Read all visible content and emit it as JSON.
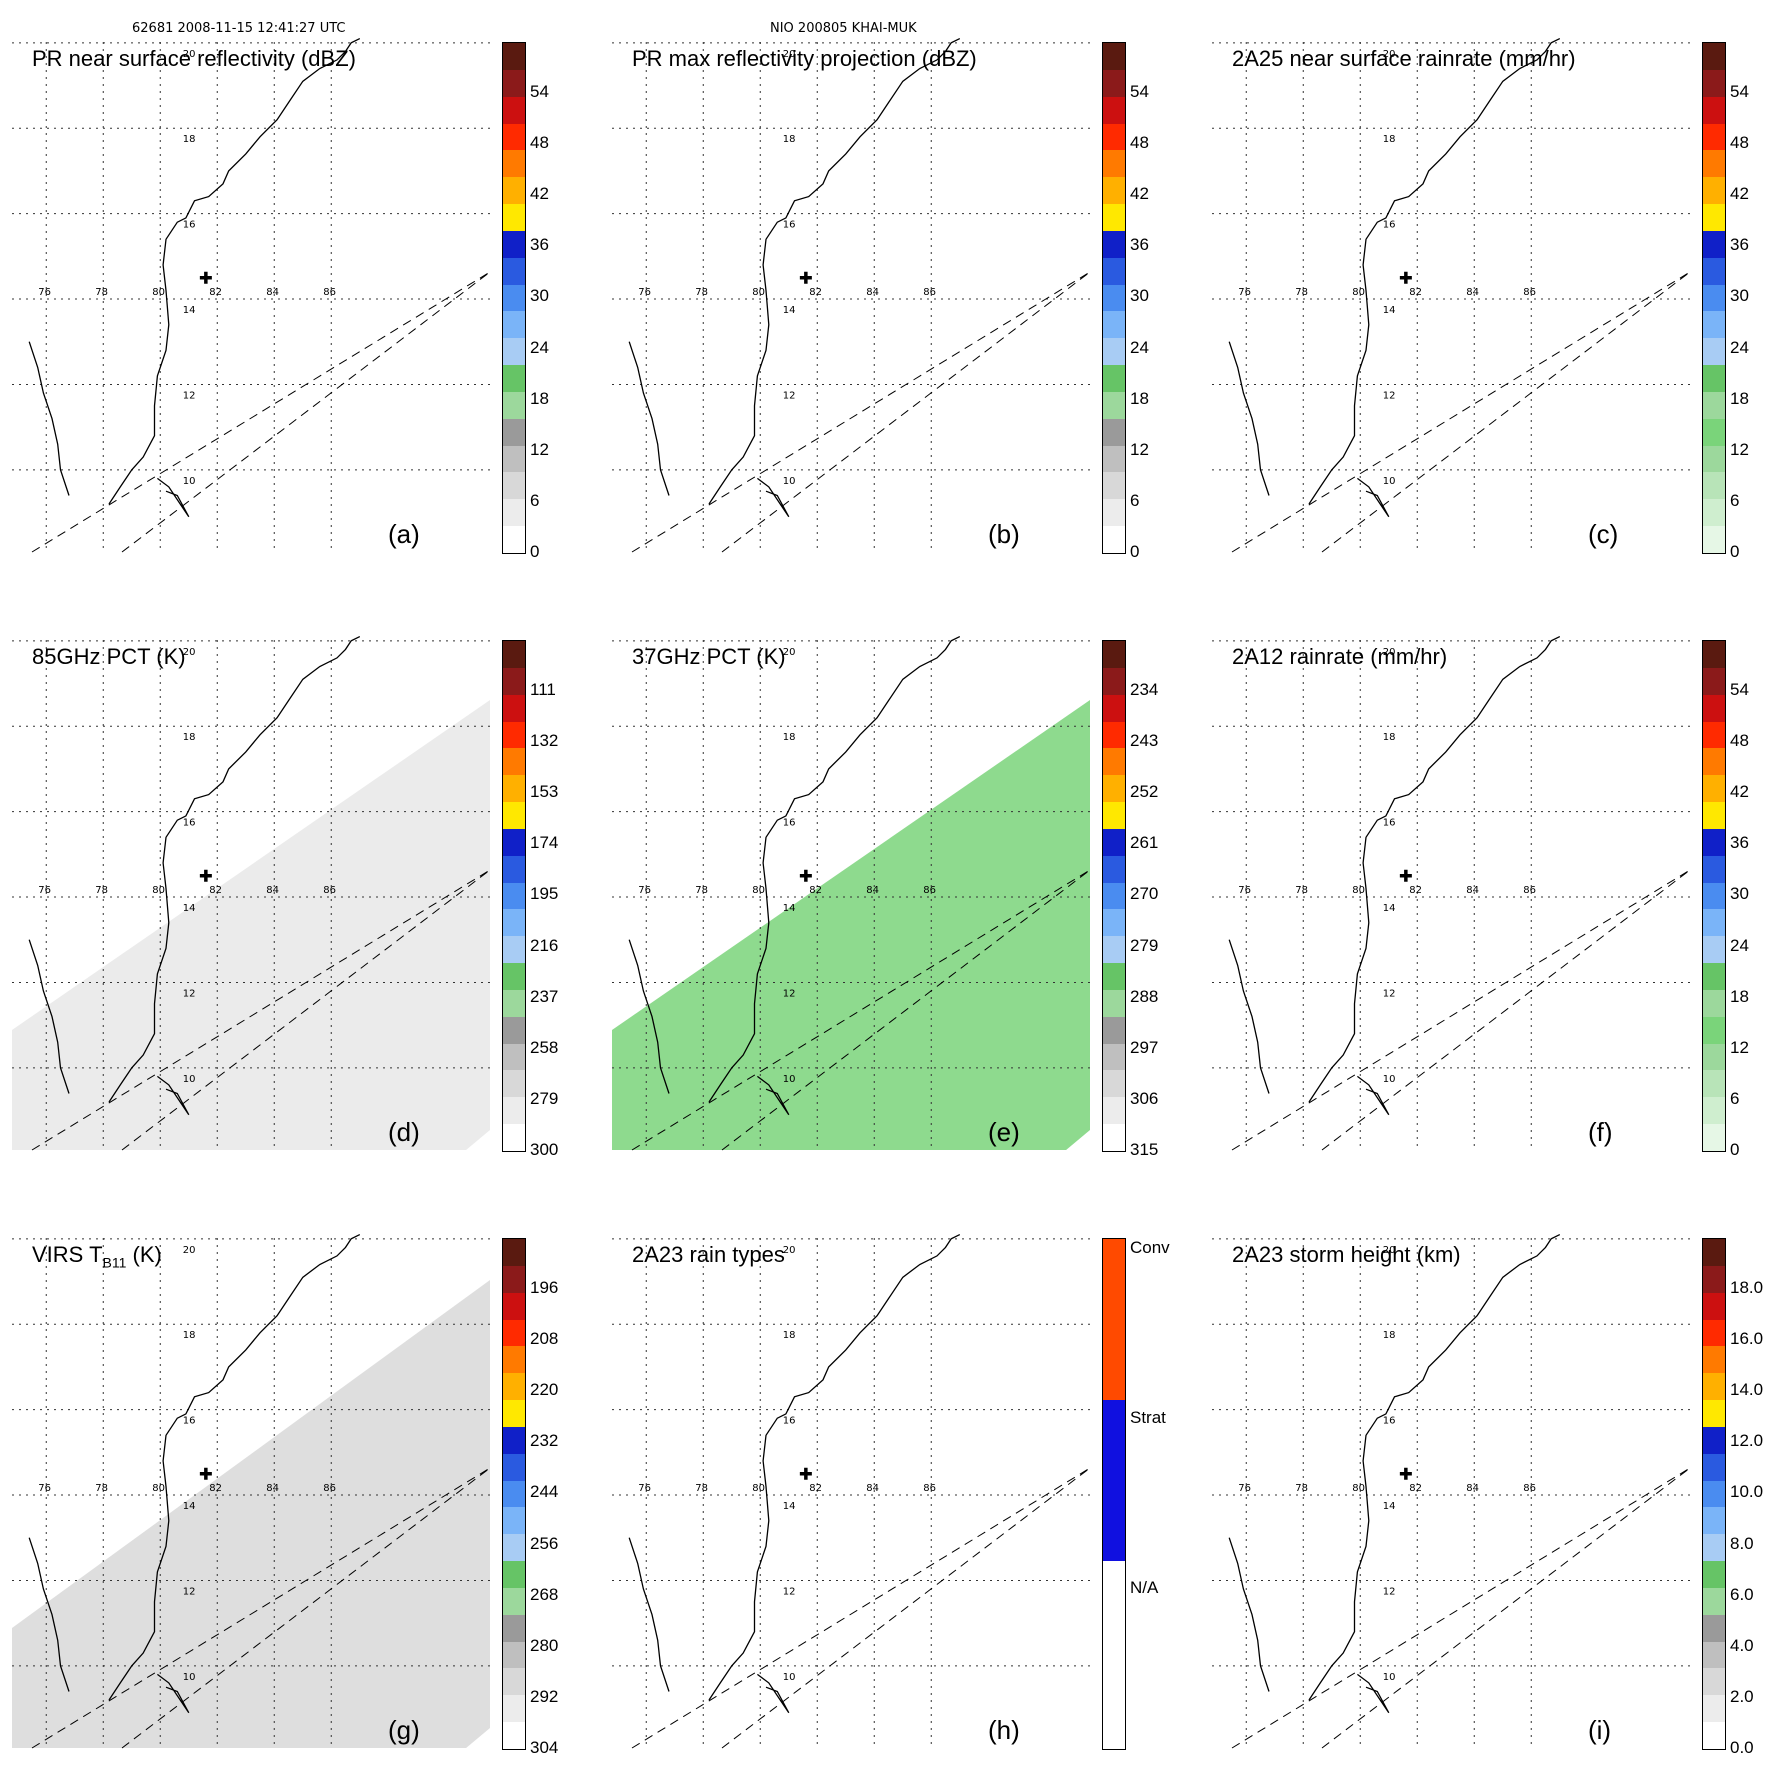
{
  "header": {
    "left": "62681 2008-11-15 12:41:27 UTC",
    "center": "NIO 200805 KHAI-MUK"
  },
  "map_labels": {
    "lon": [
      "76",
      "78",
      "80",
      "82",
      "84",
      "86"
    ],
    "lat": [
      "20",
      "18",
      "16",
      "14",
      "12",
      "10"
    ]
  },
  "colors": {
    "coast": "#000000",
    "grid": "#333333",
    "swath": "#000000",
    "center_mark": "#000000"
  },
  "icons": {
    "storm_center": "plus-marker-icon"
  },
  "panels": [
    {
      "id": "a",
      "title": "PR near surface reflectivity (dBZ)",
      "label": "(a)",
      "ticks": [
        "54",
        "48",
        "42",
        "36",
        "30",
        "24",
        "18",
        "12",
        "6",
        "0"
      ],
      "colorbar": [
        "#5a1a10",
        "#8b1a1a",
        "#cc1010",
        "#ff2a00",
        "#ff7a00",
        "#ffb000",
        "#ffe800",
        "#1020c8",
        "#2a5ae0",
        "#4a8cf0",
        "#7ab4f8",
        "#a8ccf4",
        "#66c466",
        "#9cd89c",
        "#9a9a9a",
        "#bfbfbf",
        "#d8d8d8",
        "#ececec",
        "#ffffff"
      ]
    },
    {
      "id": "b",
      "title": "PR max reflectivity projection (dBZ)",
      "label": "(b)",
      "ticks": [
        "54",
        "48",
        "42",
        "36",
        "30",
        "24",
        "18",
        "12",
        "6",
        "0"
      ],
      "colorbar": [
        "#5a1a10",
        "#8b1a1a",
        "#cc1010",
        "#ff2a00",
        "#ff7a00",
        "#ffb000",
        "#ffe800",
        "#1020c8",
        "#2a5ae0",
        "#4a8cf0",
        "#7ab4f8",
        "#a8ccf4",
        "#66c466",
        "#9cd89c",
        "#9a9a9a",
        "#bfbfbf",
        "#d8d8d8",
        "#ececec",
        "#ffffff"
      ]
    },
    {
      "id": "c",
      "title": "2A25 near surface rainrate (mm/hr)",
      "label": "(c)",
      "ticks": [
        "54",
        "48",
        "42",
        "36",
        "30",
        "24",
        "18",
        "12",
        "6",
        "0"
      ],
      "colorbar": [
        "#5a1a10",
        "#8b1a1a",
        "#cc1010",
        "#ff2a00",
        "#ff7a00",
        "#ffb000",
        "#ffe800",
        "#1020c8",
        "#2a5ae0",
        "#4a8cf0",
        "#7ab4f8",
        "#a8ccf4",
        "#66c466",
        "#9cd89c",
        "#7ad47a",
        "#9cd89c",
        "#b8e4b8",
        "#cfeecf",
        "#e6f7e6"
      ]
    },
    {
      "id": "d",
      "title": "85GHz PCT (K)",
      "label": "(d)",
      "ticks": [
        "111",
        "132",
        "153",
        "174",
        "195",
        "216",
        "237",
        "258",
        "279",
        "300"
      ],
      "colorbar": [
        "#5a1a10",
        "#8b1a1a",
        "#cc1010",
        "#ff2a00",
        "#ff7a00",
        "#ffb000",
        "#ffe800",
        "#1020c8",
        "#2a5ae0",
        "#4a8cf0",
        "#7ab4f8",
        "#a8ccf4",
        "#66c466",
        "#9cd89c",
        "#9a9a9a",
        "#bfbfbf",
        "#d8d8d8",
        "#ececec",
        "#ffffff"
      ]
    },
    {
      "id": "e",
      "title": "37GHz PCT (K)",
      "label": "(e)",
      "ticks": [
        "234",
        "243",
        "252",
        "261",
        "270",
        "279",
        "288",
        "297",
        "306",
        "315"
      ],
      "colorbar": [
        "#5a1a10",
        "#8b1a1a",
        "#cc1010",
        "#ff2a00",
        "#ff7a00",
        "#ffb000",
        "#ffe800",
        "#1020c8",
        "#2a5ae0",
        "#4a8cf0",
        "#7ab4f8",
        "#a8ccf4",
        "#66c466",
        "#9cd89c",
        "#9a9a9a",
        "#bfbfbf",
        "#d8d8d8",
        "#ececec",
        "#ffffff"
      ]
    },
    {
      "id": "f",
      "title": "2A12 rainrate (mm/hr)",
      "label": "(f)",
      "ticks": [
        "54",
        "48",
        "42",
        "36",
        "30",
        "24",
        "18",
        "12",
        "6",
        "0"
      ],
      "colorbar": [
        "#5a1a10",
        "#8b1a1a",
        "#cc1010",
        "#ff2a00",
        "#ff7a00",
        "#ffb000",
        "#ffe800",
        "#1020c8",
        "#2a5ae0",
        "#4a8cf0",
        "#7ab4f8",
        "#a8ccf4",
        "#66c466",
        "#9cd89c",
        "#7ad47a",
        "#9cd89c",
        "#b8e4b8",
        "#cfeecf",
        "#e6f7e6"
      ]
    },
    {
      "id": "g",
      "title_main": "VIRS T",
      "title_sub": "B11",
      "title_unit": " (K)",
      "label": "(g)",
      "ticks": [
        "196",
        "208",
        "220",
        "232",
        "244",
        "256",
        "268",
        "280",
        "292",
        "304"
      ],
      "colorbar": [
        "#5a1a10",
        "#8b1a1a",
        "#cc1010",
        "#ff2a00",
        "#ff7a00",
        "#ffb000",
        "#ffe800",
        "#1020c8",
        "#2a5ae0",
        "#4a8cf0",
        "#7ab4f8",
        "#a8ccf4",
        "#66c466",
        "#9cd89c",
        "#9a9a9a",
        "#bfbfbf",
        "#d8d8d8",
        "#ececec",
        "#ffffff"
      ]
    },
    {
      "id": "h",
      "title": "2A23 rain types",
      "label": "(h)",
      "ticks": [
        "Conv",
        "Strat",
        "N/A"
      ],
      "colorbar": [
        "#ff4a00",
        "#ff4a00",
        "#ff4a00",
        "#ff4a00",
        "#ff4a00",
        "#ff4a00",
        "#1010e0",
        "#1010e0",
        "#1010e0",
        "#1010e0",
        "#1010e0",
        "#1010e0",
        "#ffffff",
        "#ffffff",
        "#ffffff",
        "#ffffff",
        "#ffffff",
        "#ffffff",
        "#ffffff"
      ]
    },
    {
      "id": "i",
      "title": "2A23 storm height (km)",
      "label": "(i)",
      "ticks": [
        "18.0",
        "16.0",
        "14.0",
        "12.0",
        "10.0",
        "8.0",
        "6.0",
        "4.0",
        "2.0",
        "0.0"
      ],
      "colorbar": [
        "#5a1a10",
        "#8b1a1a",
        "#cc1010",
        "#ff2a00",
        "#ff7a00",
        "#ffb000",
        "#ffe800",
        "#1020c8",
        "#2a5ae0",
        "#4a8cf0",
        "#7ab4f8",
        "#a8ccf4",
        "#66c466",
        "#9cd89c",
        "#9a9a9a",
        "#bfbfbf",
        "#d8d8d8",
        "#ececec",
        "#ffffff"
      ]
    }
  ]
}
